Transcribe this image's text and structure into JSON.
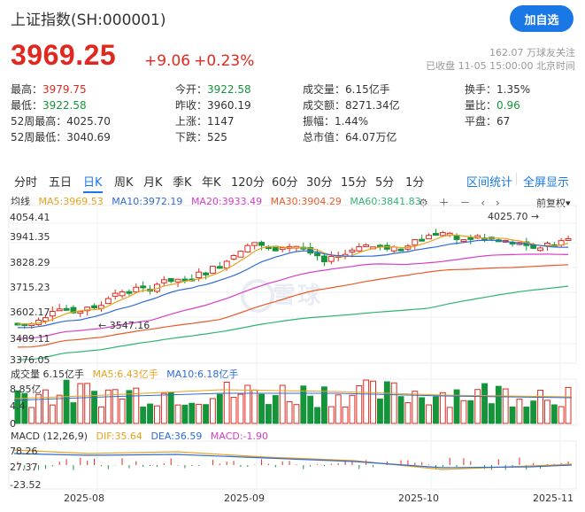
{
  "header": {
    "title": "上证指数(SH:000001)",
    "add_button": "加自选",
    "price": "3969.25",
    "change": "+9.06",
    "change_pct": "+0.23%",
    "followers": "162.07 万球友关注",
    "status": "已收盘 11-05 15:00:00 北京时间"
  },
  "stats": {
    "high_label": "最高：",
    "high": "3979.75",
    "low_label": "最低：",
    "low": "3922.58",
    "w52high_label": "52周最高：",
    "w52high": "4025.70",
    "w52low_label": "52周最低：",
    "w52low": "3040.69",
    "open_label": "今开：",
    "open": "3922.58",
    "prevclose_label": "昨收：",
    "prevclose": "3960.19",
    "up_label": "上涨：",
    "up": "1147",
    "down_label": "下跌：",
    "down": "525",
    "vol_label": "成交量：",
    "vol": "6.15亿手",
    "amount_label": "成交额：",
    "amount": "8271.34亿",
    "amp_label": "振幅：",
    "amp": "1.44%",
    "mcap_label": "总市值：",
    "mcap": "64.07万亿",
    "turnover_label": "换手：",
    "turnover": "1.35%",
    "volratio_label": "量比：",
    "volratio": "0.96",
    "flat_label": "平盘：",
    "flat": "67"
  },
  "tabs": {
    "items": [
      "分时",
      "五日",
      "日K",
      "周K",
      "月K",
      "季K",
      "年K",
      "120分",
      "60分",
      "30分",
      "15分",
      "5分",
      "1分"
    ],
    "active": "日K",
    "range_stats": "区间统计",
    "fullscreen": "全屏显示"
  },
  "ma": {
    "label": "均线",
    "ma5": "MA5:3969.53",
    "ma10": "MA10:3972.19",
    "ma20": "MA20:3933.49",
    "ma30": "MA30:3904.29",
    "ma60": "MA60:3841.83",
    "fq": "前复权"
  },
  "price_axis": [
    "4054.41",
    "3941.35",
    "3828.29",
    "3715.23",
    "3602.17",
    "3489.11",
    "3376.05"
  ],
  "low_point": "3547.16",
  "high_point": "4025.70",
  "volume": {
    "label": "成交量 6.15亿手",
    "ma5": "MA5:6.43亿手",
    "ma10": "MA10:6.18亿手",
    "axis": [
      "8.85亿",
      "4.4",
      "0"
    ]
  },
  "macd": {
    "label": "MACD (12,26,9)",
    "dif": "DIF:35.64",
    "dea": "DEA:36.59",
    "macd": "MACD:-1.90",
    "axis": [
      "78.26",
      "27.37",
      "-23.52"
    ]
  },
  "x_axis": [
    "2025-08",
    "2025-09",
    "2025-10",
    "2025-11"
  ],
  "watermark": "雪球",
  "colors": {
    "up": "#e0281e",
    "down": "#14953b",
    "accent": "#1a78e6",
    "ma5": "#e8a21c",
    "ma10": "#2f6bd6",
    "ma20": "#d63ec7",
    "ma30": "#e85a2a",
    "ma60": "#2fb46e"
  }
}
